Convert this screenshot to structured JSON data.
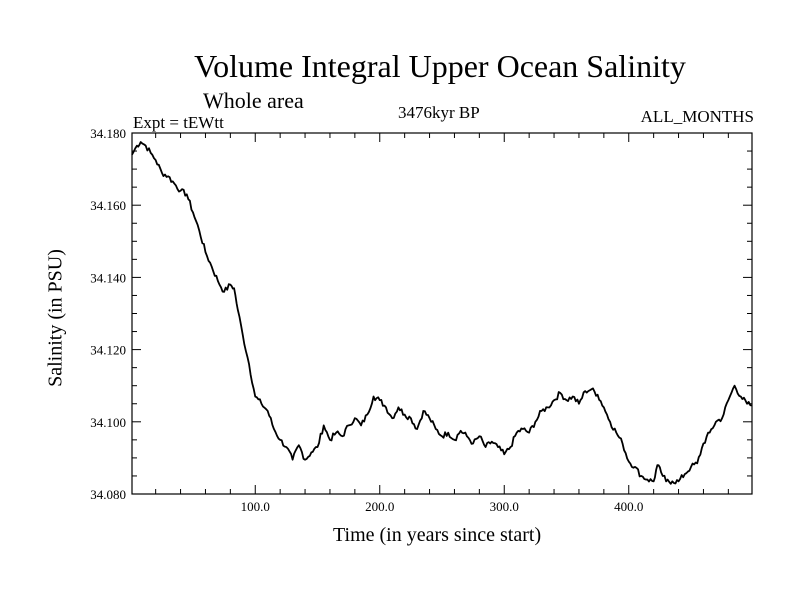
{
  "chart_data": {
    "type": "line",
    "title": "Volume Integral Upper Ocean Salinity",
    "subtitle": "Whole area",
    "left_label": "Expt = tEWtt",
    "center_label": "3476kyr BP",
    "right_label": "ALL_MONTHS",
    "xlabel": "Time (in years since start)",
    "ylabel": "Salinity (in PSU)",
    "xlim": [
      1,
      499
    ],
    "ylim": [
      34.08,
      34.18
    ],
    "xticks": [
      100,
      200,
      300,
      400
    ],
    "xtick_labels": [
      "100.0",
      "200.0",
      "300.0",
      "400.0"
    ],
    "yticks": [
      34.08,
      34.1,
      34.12,
      34.14,
      34.16,
      34.18
    ],
    "ytick_labels": [
      "34.080",
      "34.100",
      "34.120",
      "34.140",
      "34.160",
      "34.180"
    ],
    "line_color": "#000000",
    "series": [
      {
        "name": "Salinity",
        "x": [
          1,
          5,
          8,
          12,
          16,
          20,
          25,
          30,
          35,
          40,
          45,
          50,
          55,
          60,
          65,
          70,
          75,
          80,
          83,
          86,
          90,
          95,
          100,
          105,
          110,
          115,
          120,
          125,
          130,
          135,
          140,
          145,
          150,
          155,
          160,
          165,
          170,
          175,
          180,
          185,
          190,
          195,
          200,
          205,
          210,
          215,
          220,
          225,
          230,
          235,
          240,
          245,
          250,
          255,
          260,
          265,
          270,
          275,
          280,
          285,
          290,
          295,
          300,
          305,
          310,
          315,
          320,
          325,
          330,
          335,
          340,
          345,
          350,
          355,
          360,
          365,
          370,
          375,
          380,
          385,
          390,
          395,
          400,
          405,
          410,
          415,
          420,
          423,
          426,
          430,
          435,
          440,
          445,
          450,
          455,
          460,
          465,
          470,
          475,
          480,
          485,
          490,
          495,
          499
        ],
        "values": [
          34.174,
          34.1765,
          34.1775,
          34.1765,
          34.1745,
          34.1725,
          34.169,
          34.168,
          34.166,
          34.164,
          34.163,
          34.158,
          34.153,
          34.147,
          34.143,
          34.139,
          34.136,
          34.138,
          34.137,
          34.131,
          34.124,
          34.116,
          34.107,
          34.105,
          34.103,
          34.098,
          34.095,
          34.093,
          34.0895,
          34.0935,
          34.0895,
          34.0915,
          34.093,
          34.099,
          34.095,
          34.097,
          34.096,
          34.099,
          34.101,
          34.099,
          34.102,
          34.107,
          34.106,
          34.104,
          34.101,
          34.104,
          34.102,
          34.101,
          34.098,
          34.103,
          34.101,
          34.098,
          34.096,
          34.097,
          34.095,
          34.0975,
          34.096,
          34.094,
          34.096,
          34.093,
          34.0945,
          34.093,
          34.091,
          34.093,
          34.097,
          34.098,
          34.097,
          34.1,
          34.103,
          34.104,
          34.106,
          34.108,
          34.106,
          34.107,
          34.105,
          34.1085,
          34.109,
          34.1075,
          34.104,
          34.1,
          34.097,
          34.094,
          34.089,
          34.0875,
          34.085,
          34.084,
          34.0835,
          34.088,
          34.086,
          34.0835,
          34.0835,
          34.0835,
          34.0855,
          34.0875,
          34.0885,
          34.094,
          34.097,
          34.1,
          34.101,
          34.106,
          34.11,
          34.107,
          34.105,
          34.1045
        ]
      }
    ]
  }
}
